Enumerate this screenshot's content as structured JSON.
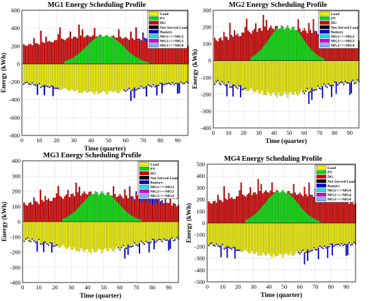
{
  "colors": {
    "load": "#f2f200",
    "pv": "#00dd00",
    "dg": "#d40000",
    "not_served": "#000000",
    "battery": "#0000cc",
    "link_a": "#00e8e8",
    "link_b": "#d400d4",
    "link_c": "#7fb0ff",
    "pink_a": "#ff40ff",
    "pink_b": "#ffb0ff"
  },
  "chart_data": [
    {
      "type": "bar",
      "title": "MG1 Energy Scheduling Profile",
      "xlabel": "Time (quarter)",
      "ylabel": "Energy (kWh)",
      "xlim": [
        0,
        96
      ],
      "xticks": [
        0,
        10,
        20,
        30,
        40,
        50,
        60,
        70,
        80,
        90
      ],
      "ylim": [
        -800,
        600
      ],
      "yticks": [
        600,
        400,
        200,
        0,
        -200,
        -400,
        -600,
        -800
      ],
      "legend": [
        "Load",
        "PV",
        "DG",
        "Not Served Load",
        "Battery",
        "MG1<=>MG2",
        "MG1<=>MG3",
        "MG1<=>MG4"
      ],
      "legend_position": "top-right",
      "base_load": 260,
      "load_amplitude": 100,
      "pv_peak": 330
    },
    {
      "type": "bar",
      "title": "MG2 Energy Scheduling Profile",
      "xlabel": "Time (quarter)",
      "ylabel": "Energy (kWh)",
      "xlim": [
        0,
        96
      ],
      "xticks": [
        0,
        10,
        20,
        30,
        40,
        50,
        60,
        70,
        80,
        90
      ],
      "ylim": [
        -400,
        300
      ],
      "yticks": [
        300,
        200,
        100,
        0,
        -100,
        -200,
        -300,
        -400
      ],
      "legend": [
        "Load",
        "PV",
        "DG",
        "Not Served Load",
        "Battery",
        "MG1<=>MG2",
        "MG2<=>MG3",
        "MG2<=>MG4"
      ],
      "legend_position": "top-right",
      "base_load": 160,
      "load_amplitude": 70,
      "pv_peak": 230
    },
    {
      "type": "bar",
      "title": "MG3 Energy Scheduling Profile",
      "xlabel": "Time (quarter)",
      "ylabel": "Energy (kWh)",
      "xlim": [
        0,
        96
      ],
      "xticks": [
        0,
        10,
        20,
        30,
        40,
        50,
        60,
        70,
        80,
        90
      ],
      "ylim": [
        -400,
        400
      ],
      "yticks": [
        400,
        300,
        200,
        100,
        0,
        -100,
        -200,
        -300,
        -400
      ],
      "legend": [
        "Load",
        "PV",
        "DG",
        "Not Served Load",
        "Battery",
        "MG1<=>MG3",
        "MG2<=>MG3",
        "MG3<=>MG4"
      ],
      "legend_position": "top-right",
      "base_load": 150,
      "load_amplitude": 70,
      "pv_peak": 210
    },
    {
      "type": "bar",
      "title": "MG4 Energy Scheduling Profile",
      "xlabel": "Time (quarter)",
      "ylabel": "Energy (kWh)",
      "xlim": [
        0,
        96
      ],
      "xticks": [
        0,
        10,
        20,
        30,
        40,
        50,
        60,
        70,
        80,
        90
      ],
      "ylim": [
        -500,
        500
      ],
      "yticks": [
        500,
        400,
        300,
        200,
        100,
        0,
        -100,
        -200,
        -300,
        -400,
        -500
      ],
      "legend": [
        "Load",
        "PV",
        "DG",
        "Not Served Load",
        "Battery",
        "MG1<=>MG4",
        "MG2<=>MG4",
        "MG3<=>MG4"
      ],
      "legend_position": "top-right",
      "base_load": 220,
      "load_amplitude": 90,
      "pv_peak": 280
    }
  ]
}
